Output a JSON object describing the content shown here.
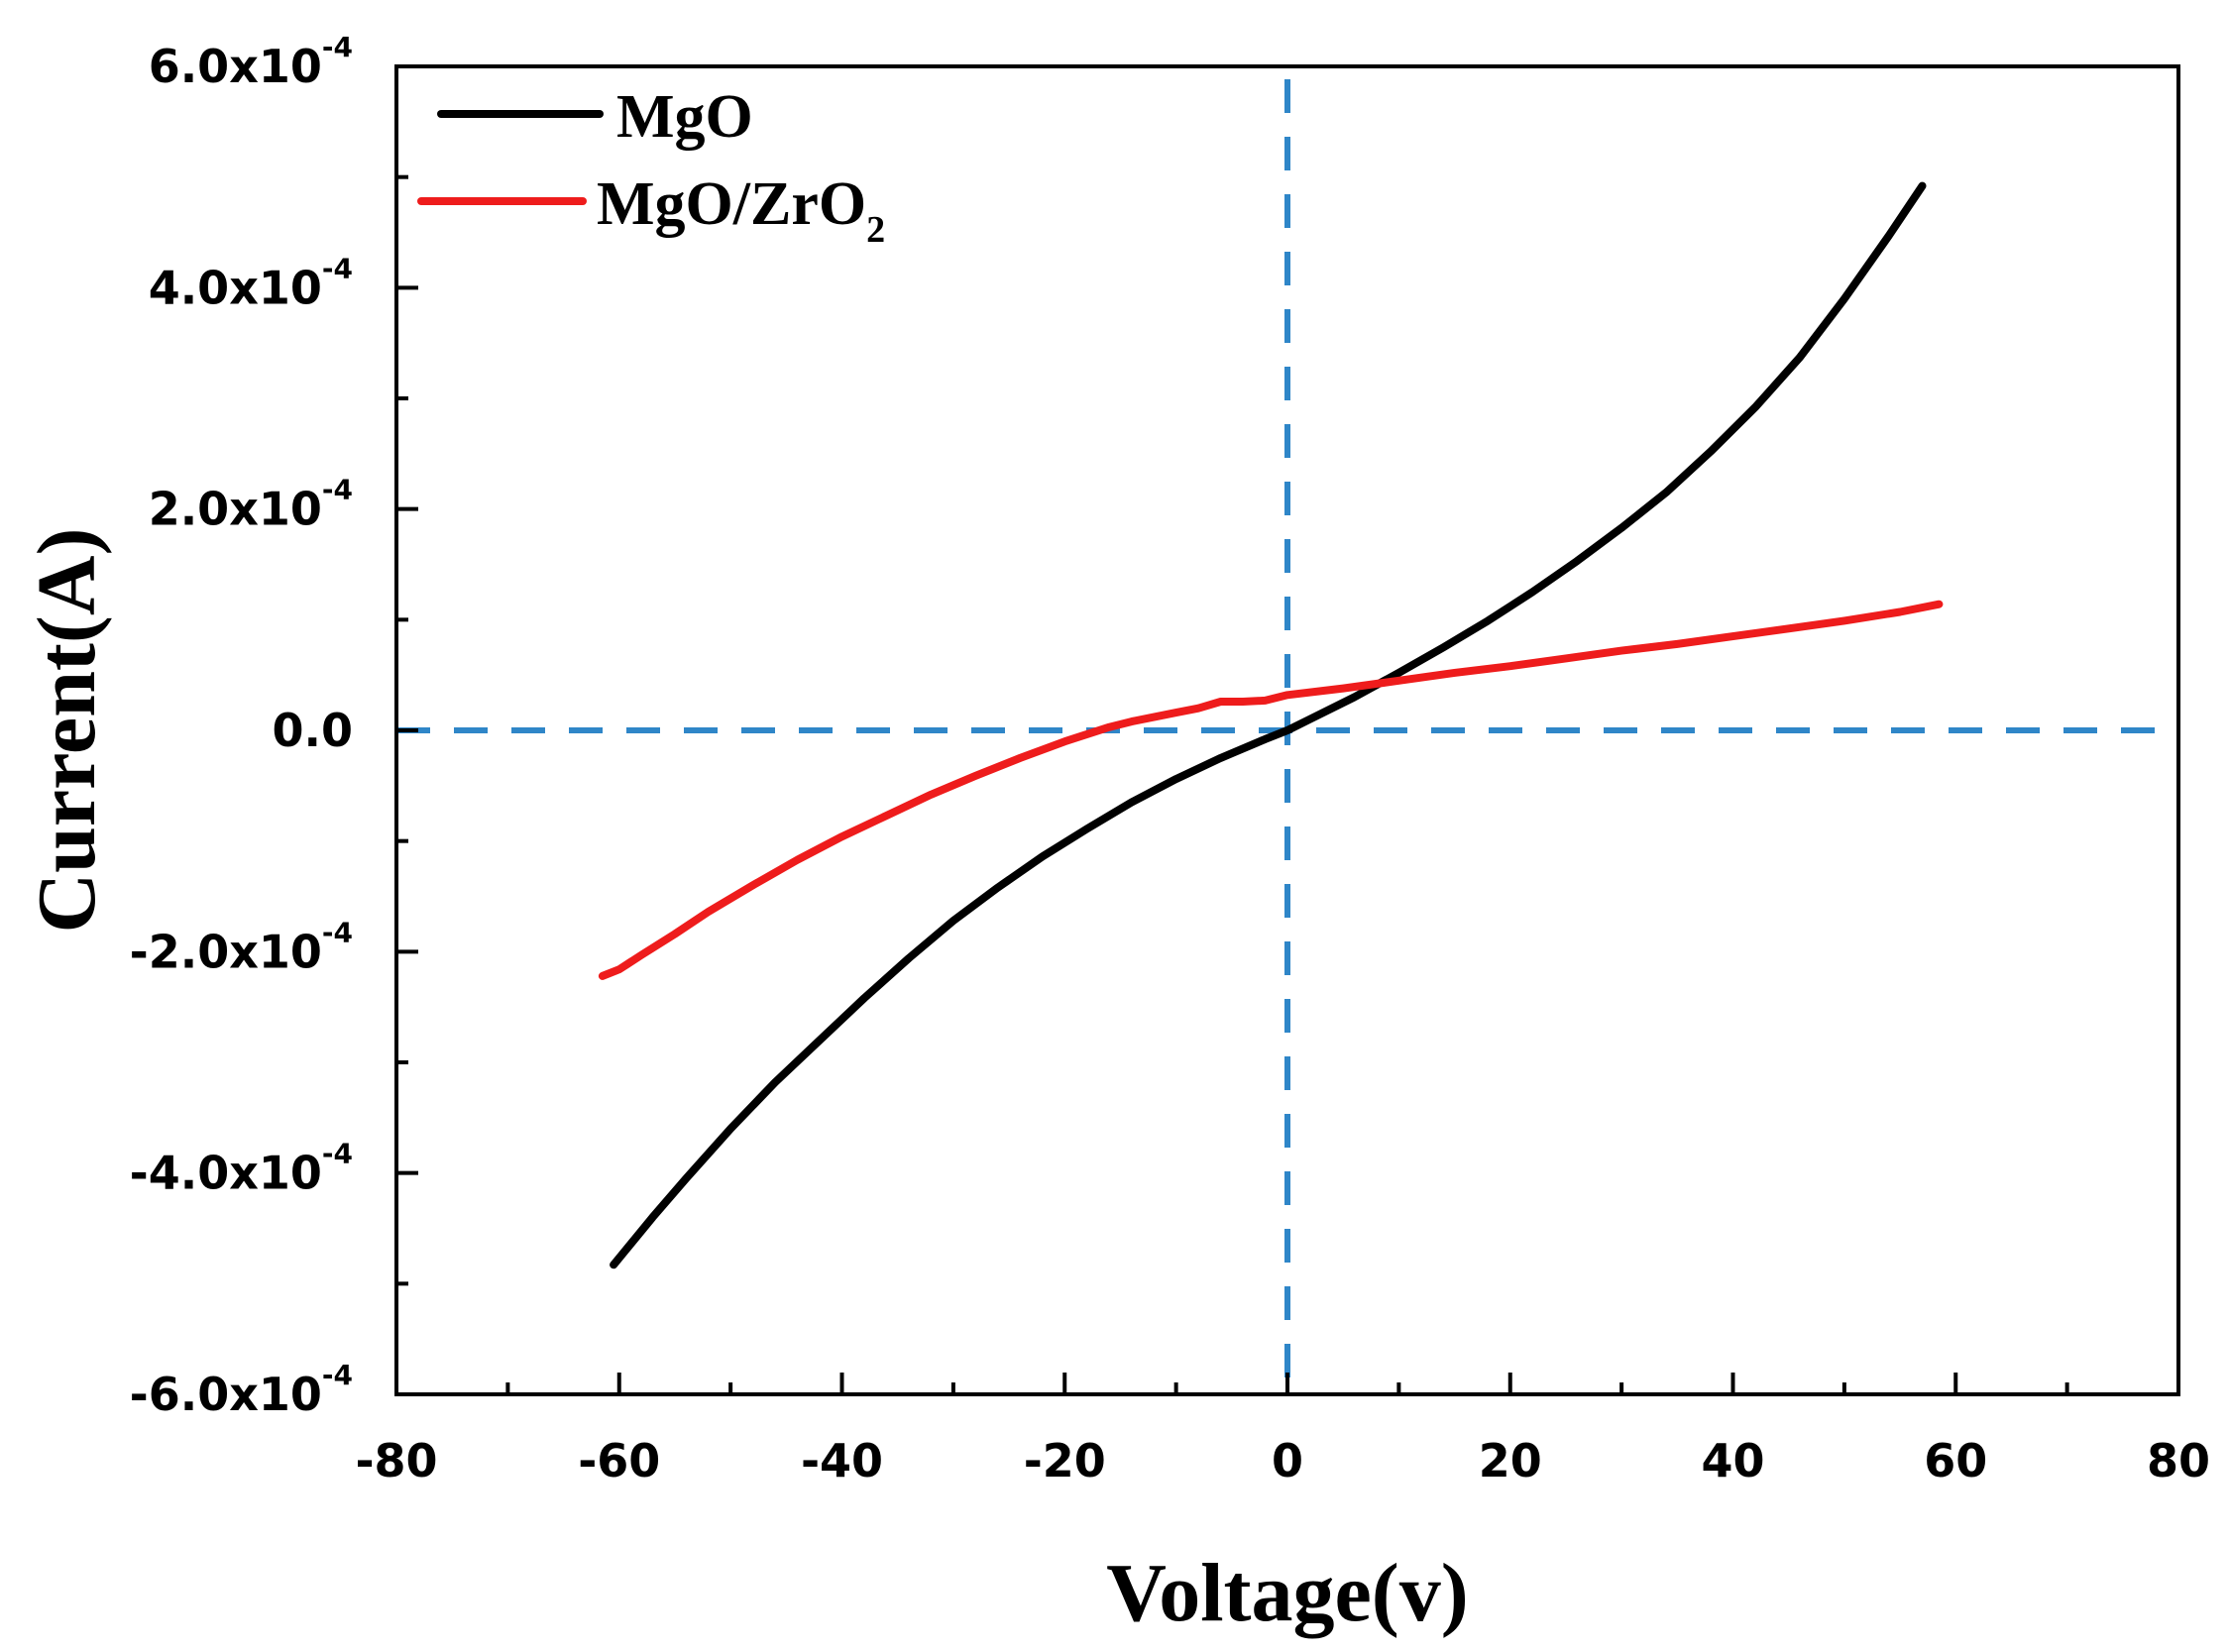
{
  "chart_data": {
    "type": "line",
    "title": "",
    "xlabel": "Voltage(v)",
    "ylabel": "Current(A)",
    "xlim": [
      -80,
      80
    ],
    "ylim": [
      -0.0006,
      0.0006
    ],
    "grid": false,
    "legend_position": "top-left",
    "xticks": [
      -80,
      -60,
      -40,
      -20,
      0,
      20,
      40,
      60,
      80
    ],
    "x_tick_labels": [
      "-80",
      "-60",
      "-40",
      "-20",
      "0",
      "20",
      "40",
      "60",
      "80"
    ],
    "yticks": [
      0.0006,
      0.0004,
      0.0002,
      0,
      -0.0002,
      -0.0004,
      -0.0006
    ],
    "y_tick_labels": [
      {
        "mantissa": "6.0x10",
        "exp": "-4"
      },
      {
        "mantissa": "4.0x10",
        "exp": "-4"
      },
      {
        "mantissa": "2.0x10",
        "exp": "-4"
      },
      {
        "mantissa": "0.0",
        "exp": ""
      },
      {
        "mantissa": "-2.0x10",
        "exp": "-4"
      },
      {
        "mantissa": "-4.0x10",
        "exp": "-4"
      },
      {
        "mantissa": "-6.0x10",
        "exp": "-4"
      }
    ],
    "reference_lines": [
      {
        "orientation": "vertical",
        "value": 0,
        "color": "#2f86c8",
        "style": "dashed"
      },
      {
        "orientation": "horizontal",
        "value": 0,
        "color": "#2f86c8",
        "style": "dashed"
      }
    ],
    "series": [
      {
        "name": "MgO",
        "legend_main": "MgO",
        "legend_sub": "",
        "color": "#000000",
        "x": [
          -60.5,
          -57,
          -54,
          -50,
          -46,
          -42,
          -38,
          -34,
          -30,
          -26,
          -22,
          -18,
          -14,
          -10,
          -6,
          -2,
          0,
          2,
          6,
          10,
          14,
          18,
          22,
          26,
          30,
          34,
          38,
          42,
          46,
          50,
          54,
          57
        ],
        "y": [
          -0.000483,
          -0.00044,
          -0.000405,
          -0.00036,
          -0.000318,
          -0.00028,
          -0.000242,
          -0.000206,
          -0.000172,
          -0.000142,
          -0.000114,
          -8.9e-05,
          -6.5e-05,
          -4.4e-05,
          -2.5e-05,
          -8e-06,
          0.0,
          1e-05,
          3e-05,
          5.2e-05,
          7.5e-05,
          9.9e-05,
          0.000125,
          0.000153,
          0.000183,
          0.000215,
          0.000252,
          0.000292,
          0.000337,
          0.00039,
          0.000447,
          0.000492
        ]
      },
      {
        "name": "MgO/ZrO2",
        "legend_main": "MgO/ZrO",
        "legend_sub": "2",
        "color": "#ee1c1c",
        "x": [
          -61.5,
          -60,
          -58,
          -55,
          -52,
          -48,
          -44,
          -40,
          -36,
          -32,
          -28,
          -24,
          -20,
          -16,
          -14,
          -12,
          -10,
          -8,
          -6,
          -4,
          -2,
          0,
          5,
          10,
          15,
          20,
          25,
          30,
          35,
          40,
          45,
          50,
          55,
          58.5
        ],
        "y": [
          -0.000222,
          -0.000216,
          -0.000203,
          -0.000184,
          -0.000164,
          -0.00014,
          -0.000117,
          -9.6e-05,
          -7.7e-05,
          -5.8e-05,
          -4.1e-05,
          -2.5e-05,
          -1e-05,
          3e-06,
          8e-06,
          1.2e-05,
          1.6e-05,
          2e-05,
          2.6e-05,
          2.6e-05,
          2.7e-05,
          3.2e-05,
          3.8e-05,
          4.5e-05,
          5.2e-05,
          5.8e-05,
          6.5e-05,
          7.2e-05,
          7.8e-05,
          8.5e-05,
          9.2e-05,
          9.9e-05,
          0.000107,
          0.000114
        ]
      }
    ]
  }
}
